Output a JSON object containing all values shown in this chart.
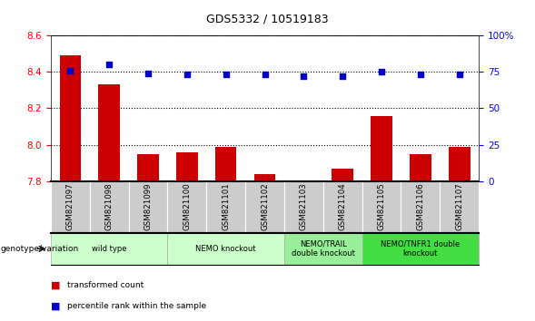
{
  "title": "GDS5332 / 10519183",
  "samples": [
    "GSM821097",
    "GSM821098",
    "GSM821099",
    "GSM821100",
    "GSM821101",
    "GSM821102",
    "GSM821103",
    "GSM821104",
    "GSM821105",
    "GSM821106",
    "GSM821107"
  ],
  "bar_values": [
    8.49,
    8.33,
    7.95,
    7.96,
    7.99,
    7.84,
    7.8,
    7.87,
    8.16,
    7.95,
    7.99
  ],
  "scatter_values": [
    76,
    80,
    74,
    73,
    73,
    73,
    72,
    72,
    75,
    73,
    73
  ],
  "ylim_left": [
    7.8,
    8.6
  ],
  "ylim_right": [
    0,
    100
  ],
  "yticks_left": [
    7.8,
    8.0,
    8.2,
    8.4,
    8.6
  ],
  "yticks_right": [
    0,
    25,
    50,
    75,
    100
  ],
  "bar_color": "#cc0000",
  "scatter_color": "#0000cc",
  "bar_width": 0.55,
  "groups": [
    {
      "label": "wild type",
      "indices": [
        0,
        1,
        2
      ],
      "color": "#ccffcc"
    },
    {
      "label": "NEMO knockout",
      "indices": [
        3,
        4,
        5
      ],
      "color": "#ccffcc"
    },
    {
      "label": "NEMO/TRAIL\ndouble knockout",
      "indices": [
        6,
        7
      ],
      "color": "#99ee99"
    },
    {
      "label": "NEMO/TNFR1 double\nknockout",
      "indices": [
        8,
        9,
        10
      ],
      "color": "#44dd44"
    }
  ],
  "legend_bar_label": "transformed count",
  "legend_scatter_label": "percentile rank within the sample",
  "genotype_label": "genotype/variation",
  "baseline": 7.8,
  "tick_bg_color": "#cccccc",
  "group_border_color": "#aaaaaa",
  "figsize": [
    5.89,
    3.54
  ],
  "dpi": 100
}
